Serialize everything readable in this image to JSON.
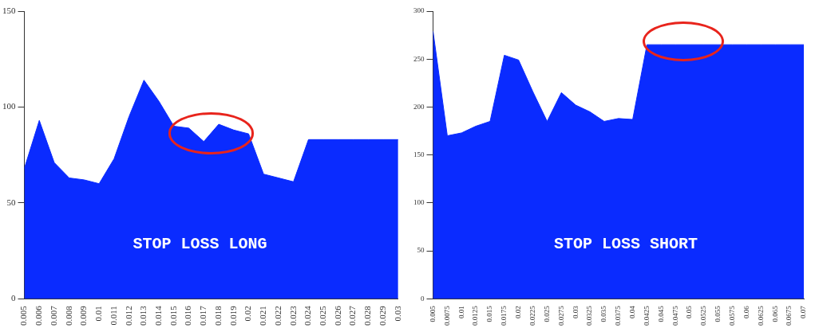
{
  "chart_data": [
    {
      "type": "area",
      "annotations": [
        "STOP LOSS LONG"
      ],
      "x": [
        0.005,
        0.006,
        0.007,
        0.008,
        0.009,
        0.01,
        0.011,
        0.012,
        0.013,
        0.014,
        0.015,
        0.016,
        0.017,
        0.018,
        0.019,
        0.02,
        0.021,
        0.022,
        0.023,
        0.024,
        0.025,
        0.026,
        0.027,
        0.028,
        0.029,
        0.03
      ],
      "series": [
        {
          "color": "#0a2bff",
          "values": [
            68,
            93,
            71,
            63,
            62,
            60,
            73,
            95,
            114,
            103,
            90,
            89,
            82,
            91,
            88,
            86,
            65,
            63,
            61,
            83,
            83,
            83,
            83,
            83,
            83,
            83
          ]
        }
      ],
      "xlim": [
        0.005,
        0.03
      ],
      "xticks": [
        0.005,
        0.006,
        0.007,
        0.008,
        0.009,
        0.01,
        0.011,
        0.012,
        0.013,
        0.014,
        0.015,
        0.016,
        0.017,
        0.018,
        0.019,
        0.02,
        0.021,
        0.022,
        0.023,
        0.024,
        0.025,
        0.026,
        0.027,
        0.028,
        0.029,
        0.03
      ],
      "ylim": [
        0,
        150
      ],
      "yticks": [
        0,
        50,
        100,
        150
      ],
      "grid": false,
      "legend": false
    },
    {
      "type": "area",
      "annotations": [
        "STOP LOSS SHORT"
      ],
      "x": [
        0.005,
        0.0075,
        0.01,
        0.0125,
        0.015,
        0.0175,
        0.02,
        0.0225,
        0.025,
        0.0275,
        0.03,
        0.0325,
        0.035,
        0.0375,
        0.04,
        0.0425,
        0.045,
        0.0475,
        0.05,
        0.0525,
        0.055,
        0.0575,
        0.06,
        0.0625,
        0.065,
        0.0675,
        0.07
      ],
      "series": [
        {
          "color": "#0a2bff",
          "values": [
            279,
            170,
            173,
            180,
            185,
            254,
            249,
            216,
            185,
            215,
            202,
            195,
            185,
            188,
            187,
            265,
            265,
            265,
            265,
            265,
            265,
            265,
            265,
            265,
            265,
            265,
            265
          ]
        }
      ],
      "xlim": [
        0.005,
        0.07
      ],
      "xticks": [
        0.005,
        0.0075,
        0.01,
        0.0125,
        0.015,
        0.0175,
        0.02,
        0.0225,
        0.025,
        0.0275,
        0.03,
        0.0325,
        0.035,
        0.0375,
        0.04,
        0.0425,
        0.045,
        0.0475,
        0.05,
        0.0525,
        0.055,
        0.0575,
        0.06,
        0.0625,
        0.065,
        0.0675,
        0.07
      ],
      "ylim": [
        0,
        300
      ],
      "yticks": [
        0,
        50,
        100,
        150,
        200,
        250,
        300
      ],
      "grid": false,
      "legend": false
    }
  ]
}
